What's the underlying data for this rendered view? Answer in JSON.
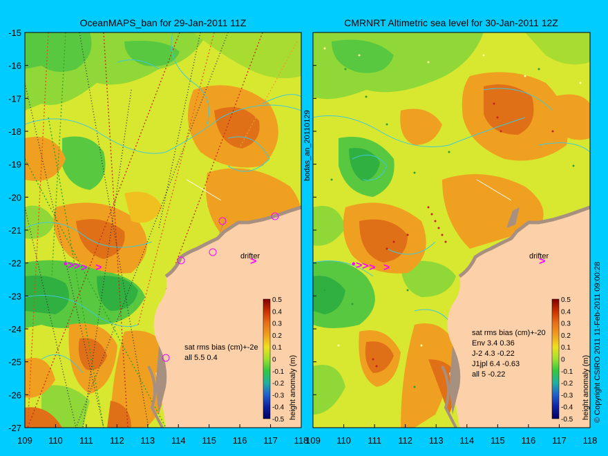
{
  "panels": [
    {
      "title": "OceanMAPS_ban for 29-Jan-2011 11Z",
      "stats_header": "sat rms bias (cm)+-2e",
      "stats": [
        "all 5.5 0.4"
      ],
      "drifter_label": "drifter",
      "colorbar_label": "height anomaly (m)"
    },
    {
      "title": "CMRNRT Altimetric sea level  for 30-Jan-2011 12Z",
      "stats_header": "sat rms bias (cm)+-20",
      "stats": [
        "Env   3.4 0.36",
        "J-2   4.3 -0.22",
        "J1jpl 6.4 -0.63",
        "all 5 -0.22"
      ],
      "drifter_label": "drifter",
      "colorbar_label": "height anomaly (m)"
    }
  ],
  "middle_label": "bodas_an_20110129",
  "right_label": "© Copyright CSIRO 2011    11-Feb-2011 09:00:28",
  "x_ticks": [
    "109",
    "110",
    "111",
    "112",
    "113",
    "114",
    "115",
    "116",
    "117",
    "118"
  ],
  "y_ticks": [
    "-15",
    "-16",
    "-17",
    "-18",
    "-19",
    "-20",
    "-21",
    "-22",
    "-23",
    "-24",
    "-25",
    "-26",
    "-27"
  ],
  "colorbar_ticks": [
    "0.5",
    "0.4",
    "0.3",
    "0.2",
    "0.1",
    "0",
    "-0.1",
    "-0.2",
    "-0.3",
    "-0.4",
    "-0.5"
  ],
  "colors": {
    "background": "#00ccff",
    "land": "#fcd0a8",
    "orange_high": "#e07018",
    "orange": "#f0a020",
    "yellow": "#f0e020",
    "lime": "#b0e030",
    "green": "#50c840",
    "drifter": "#ff00ff"
  }
}
